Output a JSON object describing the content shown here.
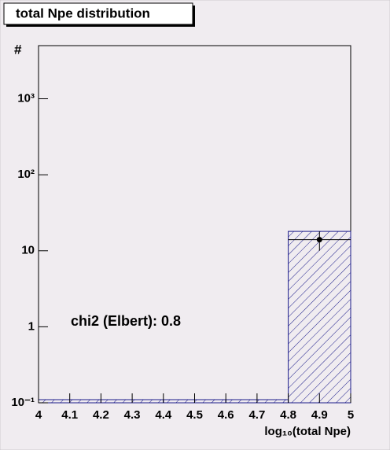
{
  "chart_data": {
    "type": "histogram",
    "title": "total Npe distribution",
    "x_label": "log₁₀(total Npe)",
    "y_label": "#",
    "annotation": "chi2 (Elbert): 0.8",
    "bins": [
      4,
      4.2,
      4.4,
      4.6,
      4.8,
      5
    ],
    "values": [
      0.11,
      0.11,
      0.11,
      0.11,
      18
    ],
    "color": "#1c1c8a",
    "hatch": true,
    "points": {
      "x": [
        4.9
      ],
      "values": [
        14
      ],
      "errors": [
        4
      ],
      "xerrors": [
        0.1
      ],
      "color": "#000000"
    },
    "xlim": [
      4,
      5
    ],
    "xticks": [
      4,
      4.1,
      4.2,
      4.3,
      4.4,
      4.5,
      4.6,
      4.7,
      4.8,
      4.9,
      5
    ],
    "ylim": [
      0.1,
      5000
    ],
    "yticks": [
      {
        "value": 0.1,
        "label": "10⁻¹"
      },
      1,
      10,
      {
        "value": 100,
        "label": "10²"
      },
      {
        "value": 1000,
        "label": "10³"
      }
    ],
    "log_y": true
  }
}
